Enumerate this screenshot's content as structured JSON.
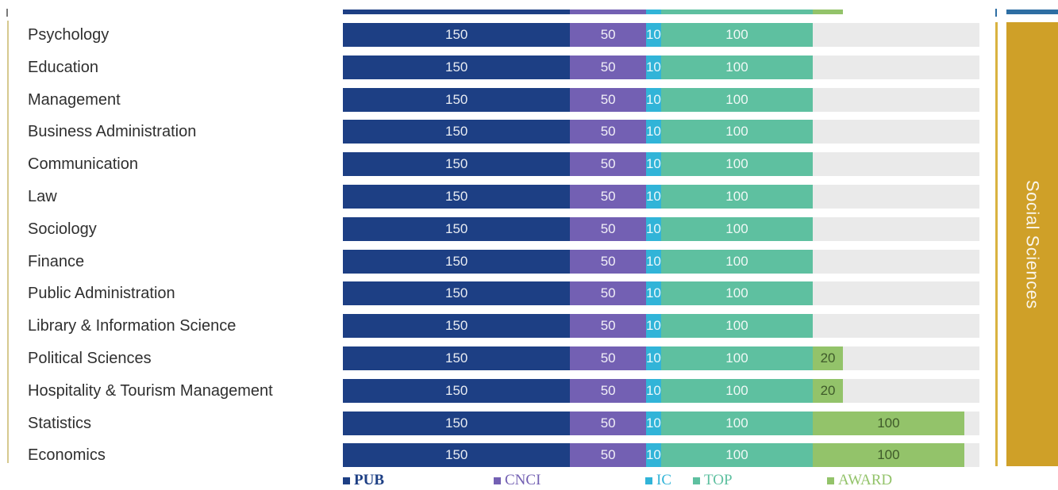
{
  "chart_data": {
    "type": "bar",
    "orientation": "horizontal",
    "stacked": true,
    "categories": [
      "Psychology",
      "Education",
      "Management",
      "Business Administration",
      "Communication",
      "Law",
      "Sociology",
      "Finance",
      "Public Administration",
      "Library & Information Science",
      "Political Sciences",
      "Hospitality & Tourism Management",
      "Statistics",
      "Economics"
    ],
    "series": [
      {
        "name": "PUB",
        "color": "#1d3f84",
        "values": [
          150,
          150,
          150,
          150,
          150,
          150,
          150,
          150,
          150,
          150,
          150,
          150,
          150,
          150
        ],
        "labels": [
          "150",
          "150",
          "150",
          "150",
          "150",
          "150",
          "150",
          "150",
          "150",
          "150",
          "150",
          "150",
          "150",
          "150"
        ]
      },
      {
        "name": "CNCI",
        "color": "#7360b3",
        "values": [
          50,
          50,
          50,
          50,
          50,
          50,
          50,
          50,
          50,
          50,
          50,
          50,
          50,
          50
        ],
        "labels": [
          "50",
          "50",
          "50",
          "50",
          "50",
          "50",
          "50",
          "50",
          "50",
          "50",
          "50",
          "50",
          "50",
          "50"
        ]
      },
      {
        "name": "IC",
        "color": "#31b4d8",
        "values": [
          10,
          10,
          10,
          10,
          10,
          10,
          10,
          10,
          10,
          10,
          10,
          10,
          10,
          10
        ],
        "labels": [
          "10",
          "10",
          "10",
          "10",
          "10",
          "10",
          "10",
          "10",
          "10",
          "10",
          "10",
          "10",
          "10",
          "10"
        ]
      },
      {
        "name": "TOP",
        "color": "#5ec0a0",
        "values": [
          100,
          100,
          100,
          100,
          100,
          100,
          100,
          100,
          100,
          100,
          100,
          100,
          100,
          100
        ],
        "labels": [
          "100",
          "100",
          "100",
          "100",
          "100",
          "100",
          "100",
          "100",
          "100",
          "100",
          "100",
          "100",
          "100",
          "100"
        ]
      },
      {
        "name": "AWARD",
        "color": "#93c36a",
        "values": [
          0,
          0,
          0,
          0,
          0,
          0,
          0,
          0,
          0,
          0,
          20,
          20,
          100,
          100
        ],
        "labels": [
          "",
          "",
          "",
          "",
          "",
          "",
          "",
          "",
          "",
          "",
          "20",
          "20",
          "100",
          "100"
        ]
      }
    ],
    "xlim": [
      0,
      420
    ],
    "group_label": "Social Sciences",
    "legend_position": "bottom",
    "legend": [
      "PUB",
      "CNCI",
      "IC",
      "TOP",
      "AWARD"
    ],
    "partial_row_above": [
      {
        "name": "PUB",
        "value": 150
      },
      {
        "name": "CNCI",
        "value": 50
      },
      {
        "name": "IC",
        "value": 10
      },
      {
        "name": "TOP",
        "value": 100
      },
      {
        "name": "AWARD",
        "value": 20
      }
    ],
    "grid": false
  },
  "colors": {
    "track": "#eaeaea",
    "group_box": "#cfa028",
    "group_top": "#2e6ea3",
    "divider": "#d9b340"
  }
}
